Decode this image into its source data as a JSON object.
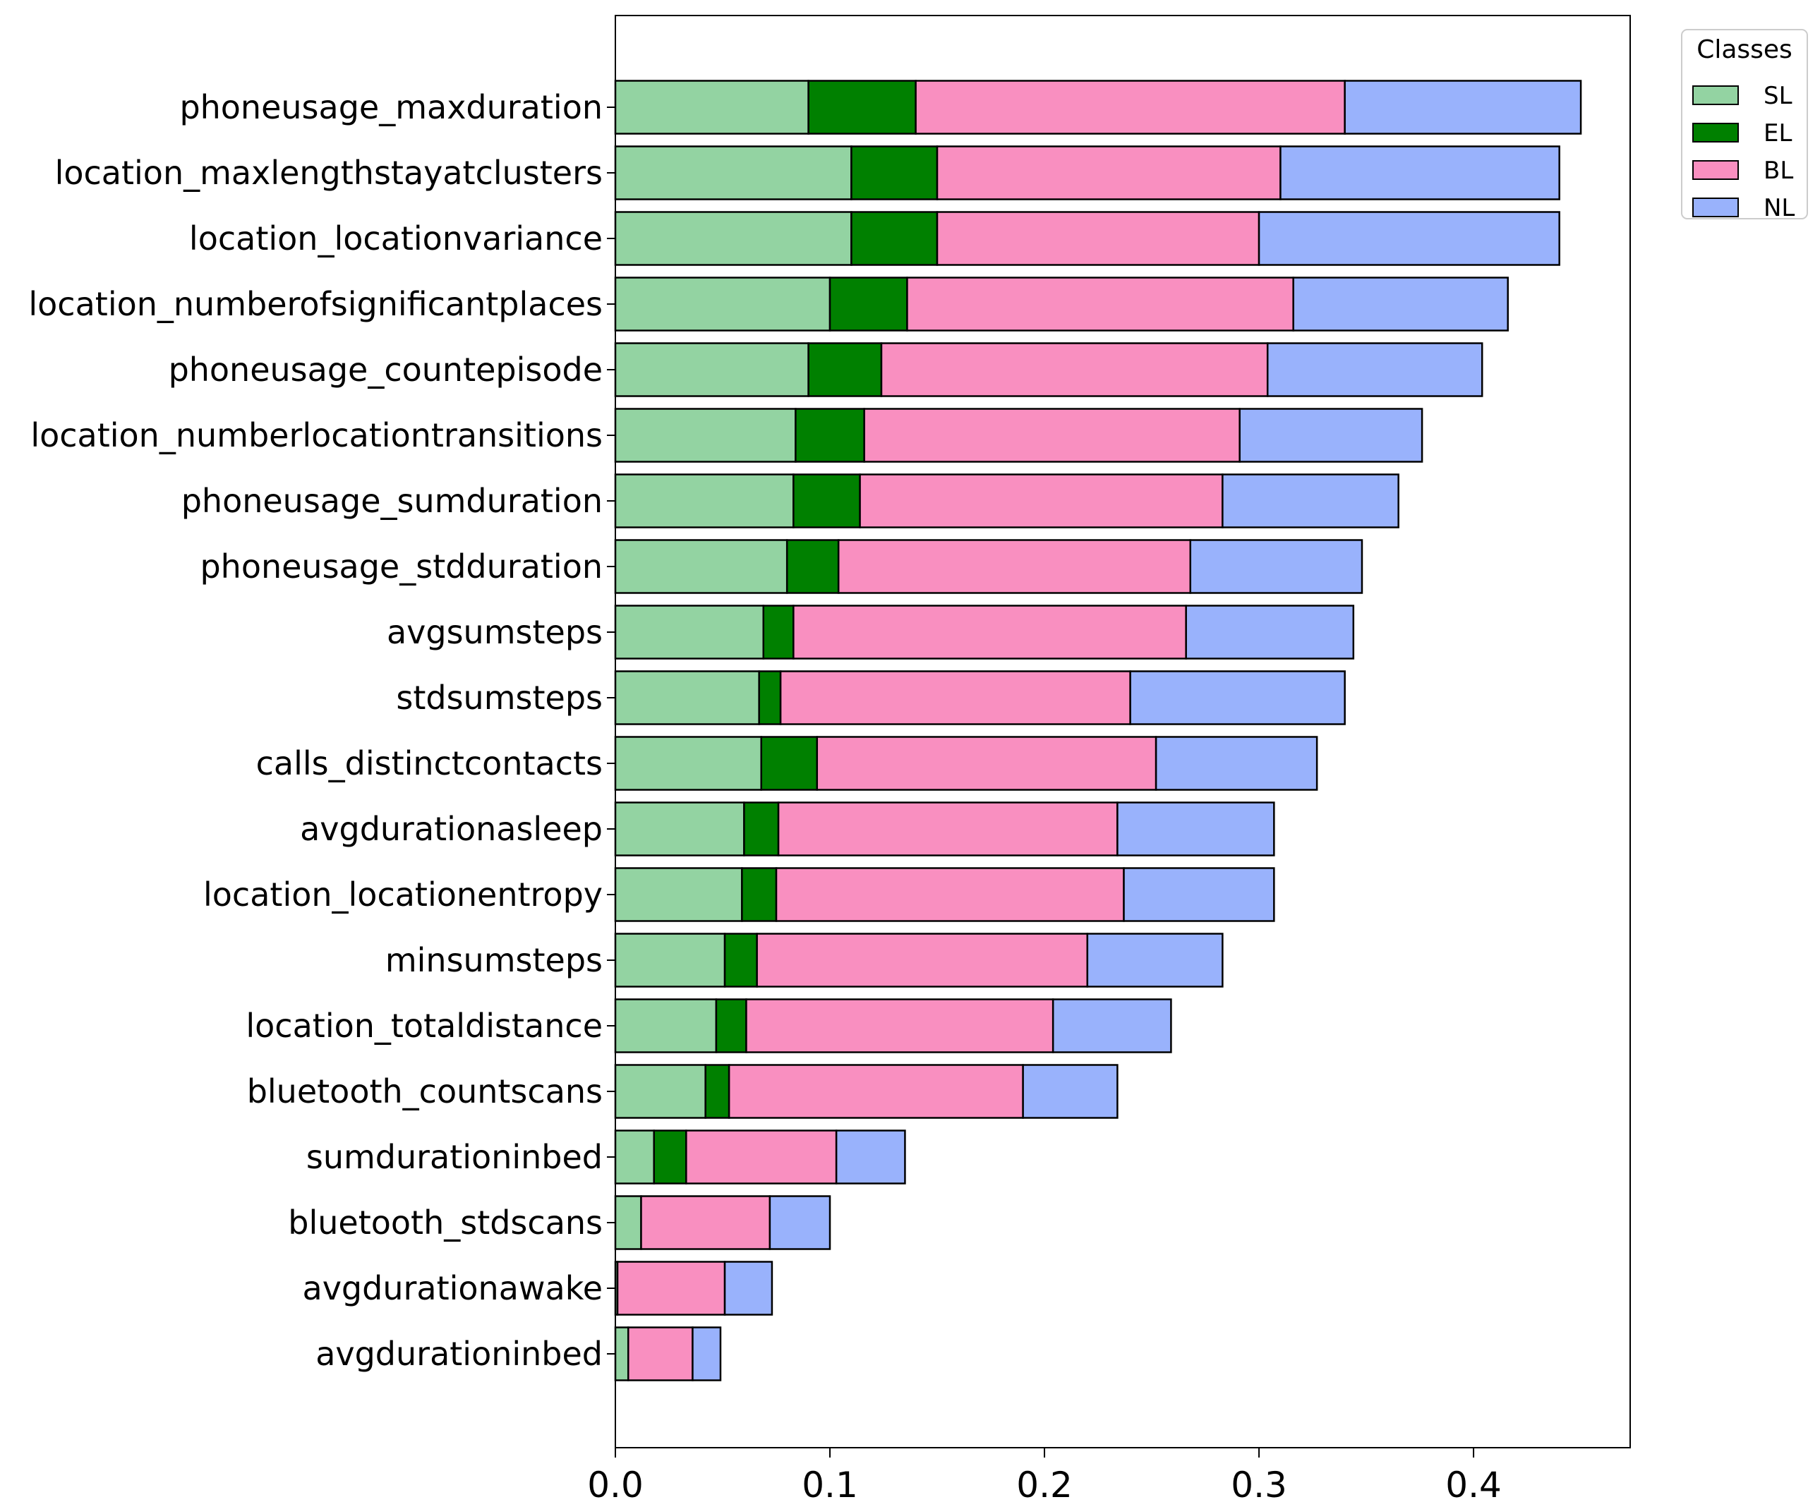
{
  "chart_data": {
    "type": "bar",
    "orientation": "horizontal",
    "stacked": true,
    "title": "",
    "xlabel": "",
    "ylabel": "",
    "xlim": [
      0,
      0.473
    ],
    "xticks": [
      "0.0",
      "0.1",
      "0.2",
      "0.3",
      "0.4"
    ],
    "grid": false,
    "legend": {
      "title": "Classes",
      "placement": "outside-top-right"
    },
    "categories": [
      "phoneusage_maxduration",
      "location_maxlengthstayatclusters",
      "location_locationvariance",
      "location_numberofsignificantplaces",
      "phoneusage_countepisode",
      "location_numberlocationtransitions",
      "phoneusage_sumduration",
      "phoneusage_stdduration",
      "avgsumsteps",
      "stdsumsteps",
      "calls_distinctcontacts",
      "avgdurationasleep",
      "location_locationentropy",
      "minsumsteps",
      "location_totaldistance",
      "bluetooth_countscans",
      "sumdurationinbed",
      "bluetooth_stdscans",
      "avgdurationawake",
      "avgdurationinbed"
    ],
    "series": [
      {
        "name": "SL",
        "color": "#93d3a2",
        "values": [
          0.09,
          0.11,
          0.11,
          0.1,
          0.09,
          0.084,
          0.083,
          0.08,
          0.069,
          0.067,
          0.068,
          0.06,
          0.059,
          0.051,
          0.047,
          0.042,
          0.018,
          0.012,
          0.001,
          0.006
        ]
      },
      {
        "name": "EL",
        "color": "#008000",
        "values": [
          0.05,
          0.04,
          0.04,
          0.036,
          0.034,
          0.032,
          0.031,
          0.024,
          0.014,
          0.01,
          0.026,
          0.016,
          0.016,
          0.015,
          0.014,
          0.011,
          0.015,
          0.0,
          0.0,
          0.0
        ]
      },
      {
        "name": "BL",
        "color": "#f98fc0",
        "values": [
          0.2,
          0.16,
          0.15,
          0.18,
          0.18,
          0.175,
          0.169,
          0.164,
          0.183,
          0.163,
          0.158,
          0.158,
          0.162,
          0.154,
          0.143,
          0.137,
          0.07,
          0.06,
          0.05,
          0.03
        ]
      },
      {
        "name": "NL",
        "color": "#99b2fc",
        "values": [
          0.11,
          0.13,
          0.14,
          0.1,
          0.1,
          0.085,
          0.082,
          0.08,
          0.078,
          0.1,
          0.075,
          0.073,
          0.07,
          0.063,
          0.055,
          0.044,
          0.032,
          0.028,
          0.022,
          0.013
        ]
      }
    ]
  }
}
